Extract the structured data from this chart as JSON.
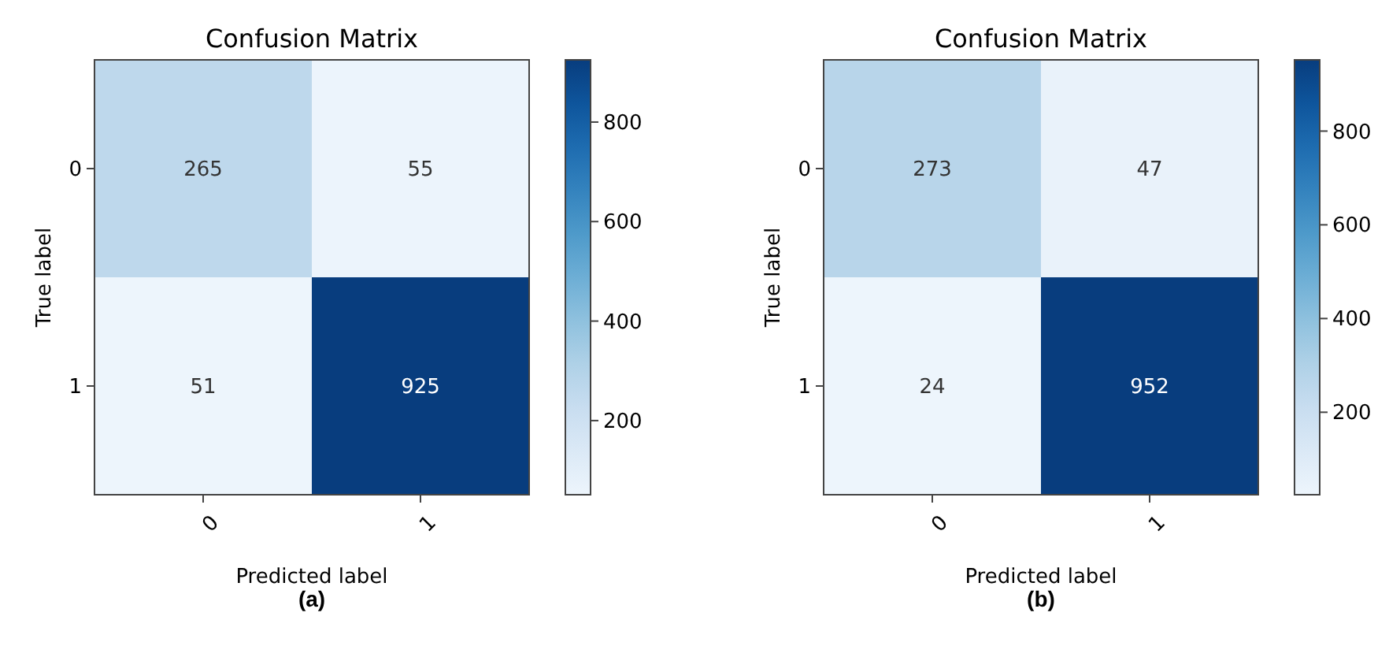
{
  "chart_data": [
    {
      "type": "heatmap",
      "title": "Confusion Matrix",
      "xlabel": "Predicted label",
      "ylabel": "True label",
      "categories": [
        "0",
        "1"
      ],
      "y_categories": [
        "0",
        "1"
      ],
      "cells": [
        [
          265,
          55
        ],
        [
          51,
          925
        ]
      ],
      "clim": [
        51,
        925
      ],
      "cticks": [
        200,
        400,
        600,
        800
      ],
      "data_labels": true,
      "annotations": [
        "(a)"
      ]
    },
    {
      "type": "heatmap",
      "title": "Confusion Matrix",
      "xlabel": "Predicted label",
      "ylabel": "True label",
      "categories": [
        "0",
        "1"
      ],
      "y_categories": [
        "0",
        "1"
      ],
      "cells": [
        [
          273,
          47
        ],
        [
          24,
          952
        ]
      ],
      "clim": [
        24,
        952
      ],
      "cticks": [
        200,
        400,
        600,
        800
      ],
      "data_labels": true,
      "annotations": [
        "(b)"
      ]
    }
  ]
}
